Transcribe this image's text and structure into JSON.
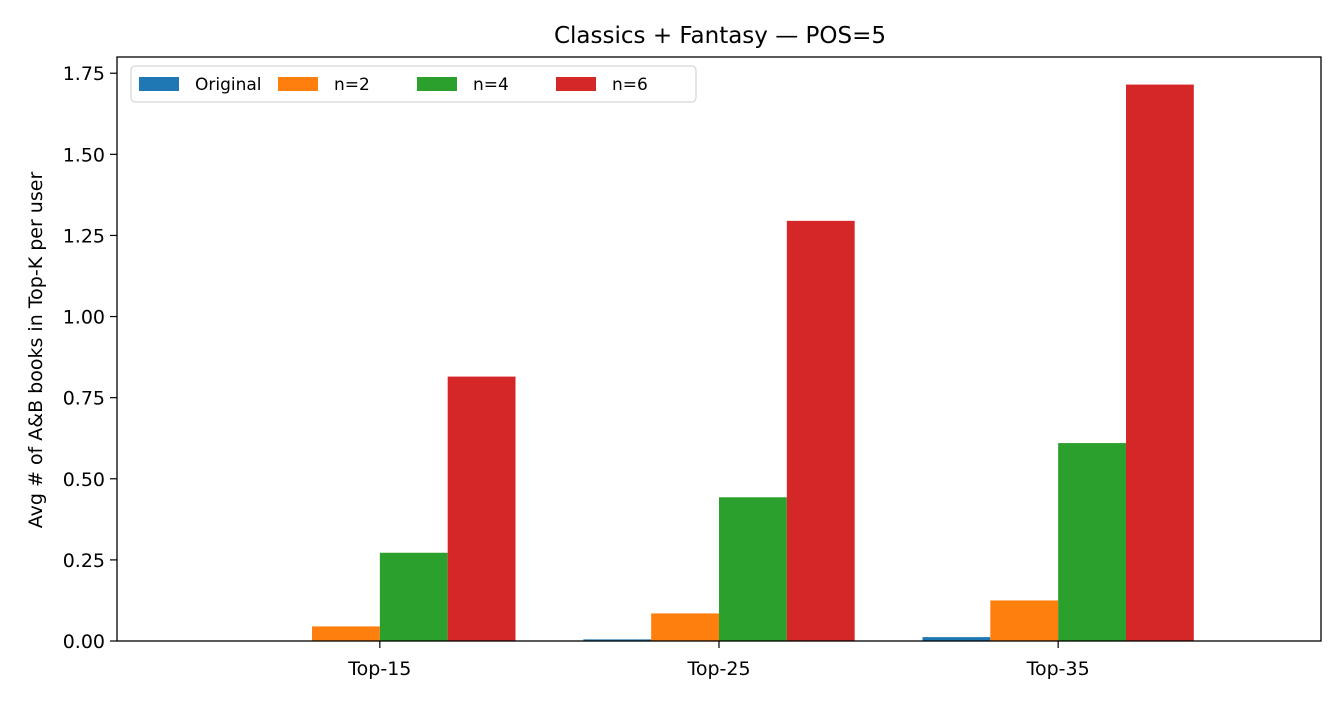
{
  "chart_data": {
    "type": "bar",
    "title": "Classics + Fantasy — POS=5",
    "xlabel": "",
    "ylabel": "Avg # of A&B books in Top-K per user",
    "categories": [
      "Top-15",
      "Top-25",
      "Top-35"
    ],
    "series": [
      {
        "name": "Original",
        "color": "#1f77b4",
        "values": [
          0.0,
          0.005,
          0.012
        ]
      },
      {
        "name": "n=2",
        "color": "#ff7f0e",
        "values": [
          0.045,
          0.085,
          0.125
        ]
      },
      {
        "name": "n=4",
        "color": "#2ca02c",
        "values": [
          0.272,
          0.443,
          0.61
        ]
      },
      {
        "name": "n=6",
        "color": "#d62728",
        "values": [
          0.815,
          1.295,
          1.715
        ]
      }
    ],
    "ylim": [
      0,
      1.8
    ],
    "yticks": [
      0.0,
      0.25,
      0.5,
      0.75,
      1.0,
      1.25,
      1.5,
      1.75
    ],
    "ytick_labels": [
      "0.00",
      "0.25",
      "0.50",
      "0.75",
      "1.00",
      "1.25",
      "1.50",
      "1.75"
    ],
    "grid": false,
    "legend_position": "top-left"
  }
}
